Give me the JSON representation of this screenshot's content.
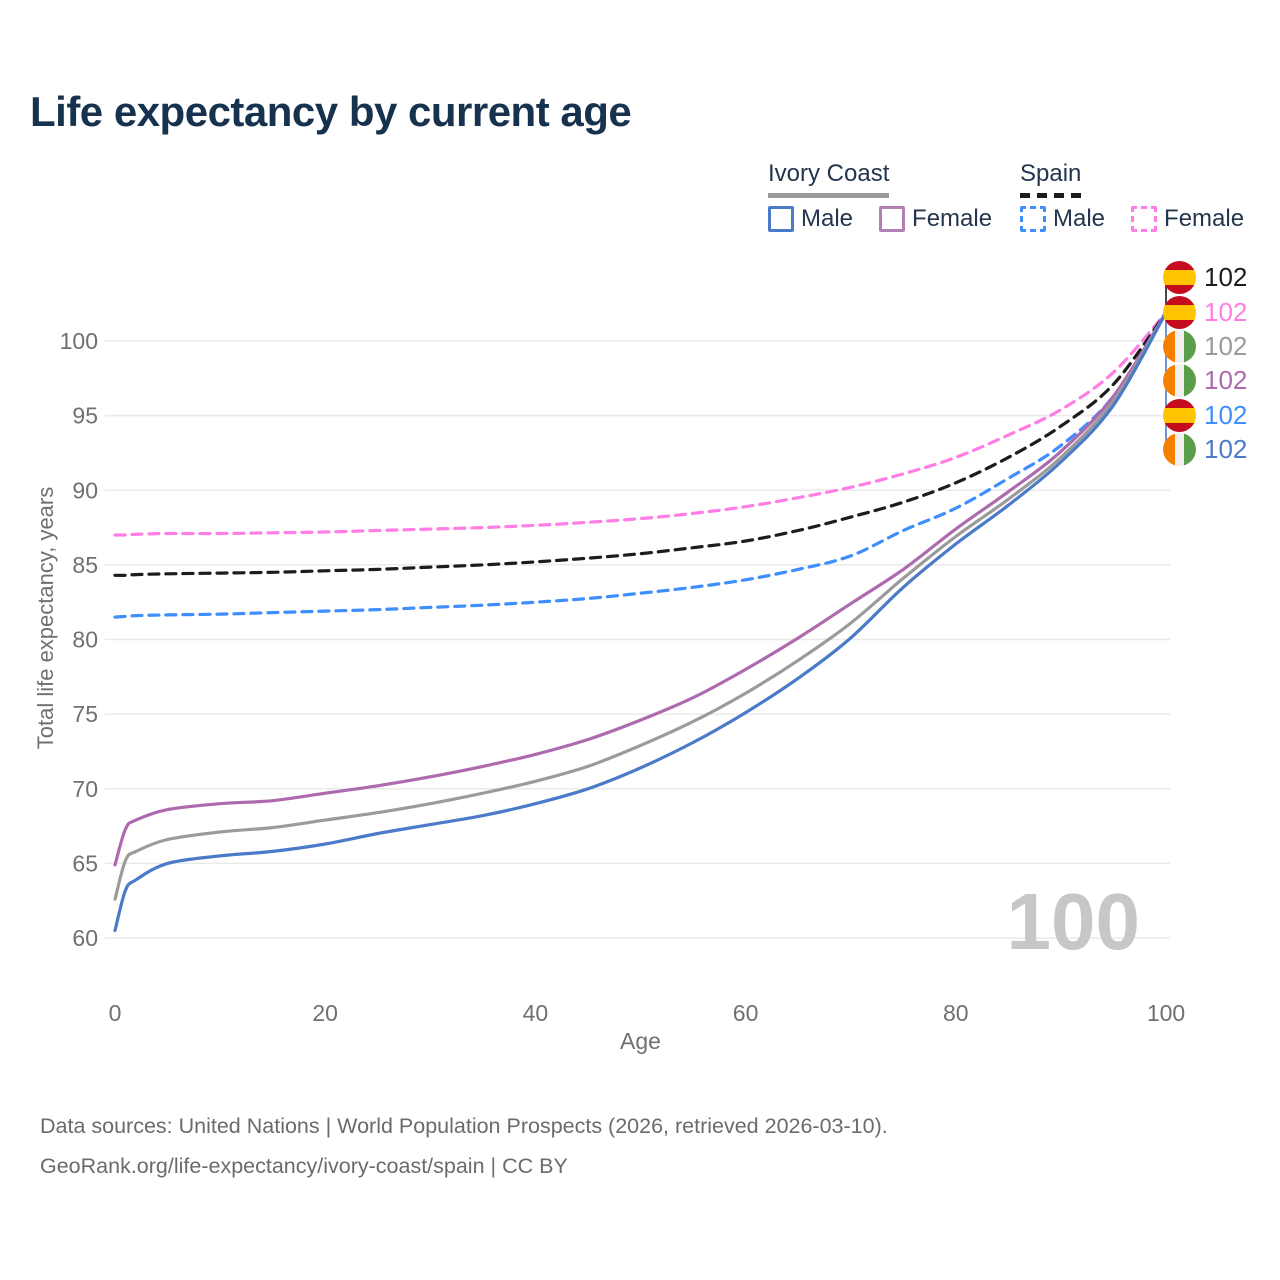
{
  "title": "Life expectancy by current age",
  "legend": {
    "groups": [
      {
        "country": "Ivory Coast",
        "line_style": "solid",
        "swatch_color": "#9b9b9b",
        "items": [
          {
            "label": "Male",
            "color": "#4b7bc8",
            "dashed": false
          },
          {
            "label": "Female",
            "color": "#b47fb4",
            "dashed": false
          }
        ]
      },
      {
        "country": "Spain",
        "line_style": "dashed",
        "swatch_color": "#1c1c1c",
        "items": [
          {
            "label": "Male",
            "color": "#3f8efd",
            "dashed": true
          },
          {
            "label": "Female",
            "color": "#ff7de4",
            "dashed": true
          }
        ]
      }
    ]
  },
  "watermark": "100",
  "footer": {
    "line1": "Data sources: United Nations | World Population Prospects (2026, retrieved 2026-03-10).",
    "line2": "GeoRank.org/life-expectancy/ivory-coast/spain | CC BY"
  },
  "chart_data": {
    "type": "line",
    "title": "Life expectancy by current age",
    "xlabel": "Age",
    "ylabel": "Total life expectancy, years",
    "xlim": [
      0,
      100
    ],
    "ylim": [
      60,
      100
    ],
    "xticks": [
      0,
      20,
      40,
      60,
      80,
      100
    ],
    "yticks": [
      60,
      65,
      70,
      75,
      80,
      85,
      90,
      95,
      100
    ],
    "grid": "horizontal",
    "legend_position": "top-right",
    "ages": [
      0,
      1,
      2,
      5,
      10,
      15,
      20,
      25,
      30,
      35,
      40,
      45,
      50,
      55,
      60,
      65,
      70,
      75,
      80,
      85,
      90,
      95,
      100
    ],
    "series": [
      {
        "name": "Spain Female",
        "country": "Spain",
        "sex": "female",
        "color": "#ff7de4",
        "dashed": true,
        "values": [
          87.0,
          87.0,
          87.05,
          87.1,
          87.1,
          87.15,
          87.2,
          87.3,
          87.4,
          87.5,
          87.65,
          87.85,
          88.1,
          88.45,
          88.9,
          89.5,
          90.2,
          91.1,
          92.2,
          93.7,
          95.4,
          97.9,
          101.9
        ]
      },
      {
        "name": "Spain All",
        "country": "Spain",
        "sex": "all",
        "color": "#1c1c1c",
        "dashed": true,
        "values": [
          84.3,
          84.3,
          84.35,
          84.4,
          84.45,
          84.5,
          84.6,
          84.7,
          84.85,
          85.0,
          85.2,
          85.45,
          85.75,
          86.15,
          86.6,
          87.3,
          88.2,
          89.2,
          90.5,
          92.2,
          94.3,
          97.1,
          101.9
        ]
      },
      {
        "name": "Spain Male",
        "country": "Spain",
        "sex": "male",
        "color": "#3f8efd",
        "dashed": true,
        "values": [
          81.5,
          81.55,
          81.6,
          81.65,
          81.7,
          81.8,
          81.9,
          82.0,
          82.15,
          82.3,
          82.5,
          82.75,
          83.1,
          83.5,
          84.0,
          84.7,
          85.6,
          87.3,
          88.8,
          90.8,
          93.0,
          96.3,
          101.9
        ]
      },
      {
        "name": "Ivory Coast Female",
        "country": "Ivory Coast",
        "sex": "female",
        "color": "#ae6aae",
        "dashed": false,
        "values": [
          64.9,
          67.3,
          67.9,
          68.6,
          69.0,
          69.2,
          69.7,
          70.2,
          70.8,
          71.5,
          72.3,
          73.3,
          74.6,
          76.1,
          78.0,
          80.1,
          82.4,
          84.7,
          87.4,
          89.9,
          92.6,
          96.3,
          101.9
        ]
      },
      {
        "name": "Ivory Coast All",
        "country": "Ivory Coast",
        "sex": "all",
        "color": "#9b9b9b",
        "dashed": false,
        "values": [
          62.6,
          65.2,
          65.8,
          66.6,
          67.1,
          67.4,
          67.9,
          68.4,
          69.0,
          69.7,
          70.5,
          71.5,
          72.9,
          74.5,
          76.4,
          78.6,
          81.1,
          84.1,
          86.9,
          89.4,
          92.2,
          96.0,
          101.9
        ]
      },
      {
        "name": "Ivory Coast Male",
        "country": "Ivory Coast",
        "sex": "male",
        "color": "#4b7bc8",
        "dashed": false,
        "values": [
          60.5,
          63.2,
          63.9,
          65.0,
          65.5,
          65.8,
          66.3,
          67.0,
          67.6,
          68.2,
          69.0,
          70.0,
          71.4,
          73.1,
          75.1,
          77.4,
          80.1,
          83.5,
          86.4,
          89.0,
          91.9,
          95.7,
          101.9
        ]
      }
    ],
    "end_labels": [
      {
        "series": "Spain All",
        "flag": "spain",
        "text": "102",
        "color": "#1c1c1c"
      },
      {
        "series": "Spain Female",
        "flag": "spain",
        "text": "102",
        "color": "#ff7de4"
      },
      {
        "series": "Ivory Coast All",
        "flag": "ivory-coast",
        "text": "102",
        "color": "#9b9b9b"
      },
      {
        "series": "Ivory Coast Female",
        "flag": "ivory-coast",
        "text": "102",
        "color": "#ae6aae"
      },
      {
        "series": "Spain Male",
        "flag": "spain",
        "text": "102",
        "color": "#3f8efd"
      },
      {
        "series": "Ivory Coast Male",
        "flag": "ivory-coast",
        "text": "102",
        "color": "#4b7bc8"
      }
    ]
  }
}
